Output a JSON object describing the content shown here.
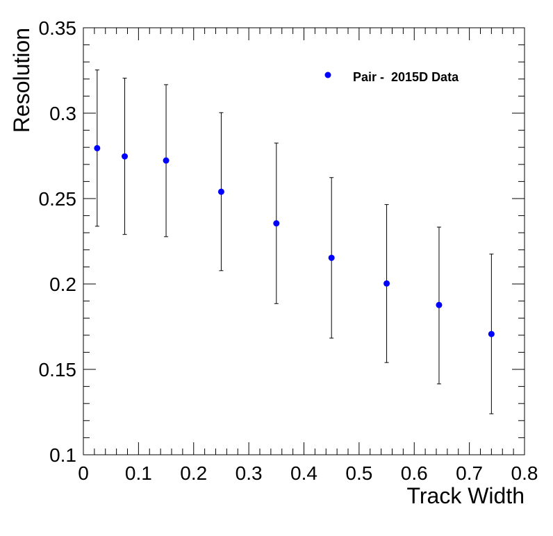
{
  "chart_data": {
    "type": "scatter",
    "title": "",
    "xlabel": "Track Width",
    "ylabel": "Resolution",
    "xlim": [
      0,
      0.8
    ],
    "ylim": [
      0.1,
      0.35
    ],
    "grid": false,
    "legend_position": "top-right",
    "x_ticks": [
      "0",
      "0.1",
      "0.2",
      "0.3",
      "0.4",
      "0.5",
      "0.6",
      "0.7",
      "0.8"
    ],
    "y_ticks": [
      "0.1",
      "0.15",
      "0.2",
      "0.25",
      "0.3",
      "0.35"
    ],
    "series": [
      {
        "name": "Pair -  2015D Data",
        "color": "#0000ff",
        "points": [
          {
            "x": 0.025,
            "y": 0.2795,
            "ylow": 0.2338,
            "yhigh": 0.3253
          },
          {
            "x": 0.075,
            "y": 0.2747,
            "ylow": 0.229,
            "yhigh": 0.3205
          },
          {
            "x": 0.15,
            "y": 0.2723,
            "ylow": 0.2277,
            "yhigh": 0.3167
          },
          {
            "x": 0.25,
            "y": 0.254,
            "ylow": 0.2078,
            "yhigh": 0.3003
          },
          {
            "x": 0.35,
            "y": 0.2355,
            "ylow": 0.1885,
            "yhigh": 0.2825
          },
          {
            "x": 0.45,
            "y": 0.2153,
            "ylow": 0.1683,
            "yhigh": 0.2623
          },
          {
            "x": 0.55,
            "y": 0.2003,
            "ylow": 0.154,
            "yhigh": 0.2465
          },
          {
            "x": 0.645,
            "y": 0.1877,
            "ylow": 0.1415,
            "yhigh": 0.2333
          },
          {
            "x": 0.74,
            "y": 0.1707,
            "ylow": 0.124,
            "yhigh": 0.2175
          }
        ]
      }
    ]
  }
}
